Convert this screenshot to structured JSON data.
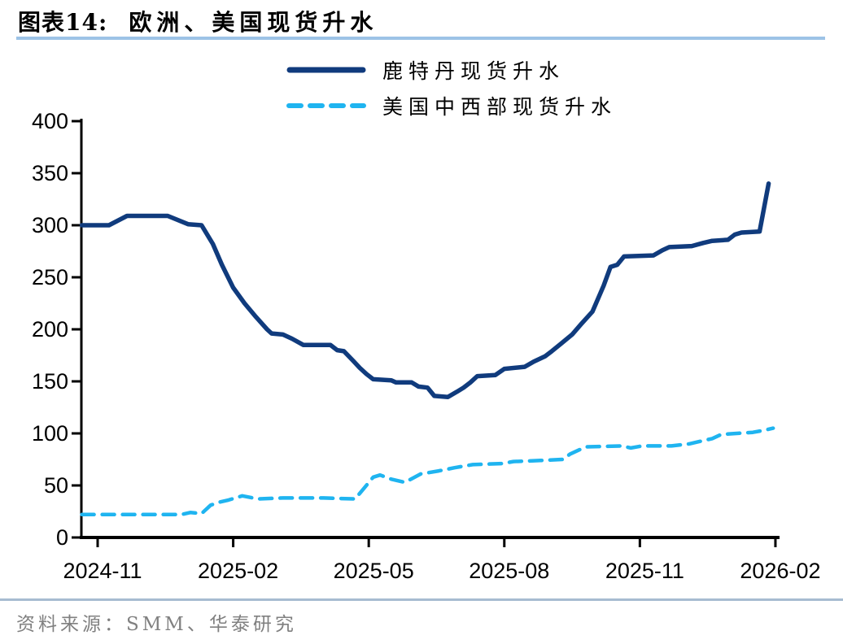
{
  "header": {
    "title_prefix": "图表14:",
    "title_text": "欧洲、美国现货升水"
  },
  "legend": {
    "items": [
      {
        "label": "鹿特丹现货升水",
        "color": "#103B7D",
        "style": "solid"
      },
      {
        "label": "美国中西部现货升水",
        "color": "#1FB4F0",
        "style": "dashed"
      }
    ]
  },
  "footer": {
    "source": "资料来源：SMM、华泰研究"
  },
  "colors": {
    "title_rule": "#9DC3E6",
    "footer_rule": "#A7BCD1",
    "axis": "#000000",
    "navy_series": "#103B7D",
    "cyan_series": "#1FB4F0",
    "footer_text": "#808080"
  },
  "chart_data": {
    "type": "line",
    "title": "欧洲、美国现货升水",
    "xlabel": "",
    "ylabel": "",
    "grid": false,
    "legend_position": "top-center",
    "x_unit": "months after 2024-11",
    "x_axis": {
      "range": [
        -0.5,
        15.3
      ],
      "ticks": [
        {
          "m": 0,
          "label": "2024-11"
        },
        {
          "m": 3,
          "label": "2025-02"
        },
        {
          "m": 6,
          "label": "2025-05"
        },
        {
          "m": 9,
          "label": "2025-08"
        },
        {
          "m": 12,
          "label": "2025-11"
        },
        {
          "m": 15,
          "label": "2026-02"
        }
      ]
    },
    "y_axis": {
      "range": [
        0,
        400
      ],
      "ticks": [
        0,
        50,
        100,
        150,
        200,
        250,
        300,
        350,
        400
      ]
    },
    "series": [
      {
        "name": "鹿特丹现货升水",
        "color": "#103B7D",
        "dash": false,
        "points": [
          [
            -0.35,
            300
          ],
          [
            0.25,
            300
          ],
          [
            0.65,
            309
          ],
          [
            1.55,
            309
          ],
          [
            2.0,
            301
          ],
          [
            2.3,
            300
          ],
          [
            2.55,
            282
          ],
          [
            2.75,
            262
          ],
          [
            3.0,
            240
          ],
          [
            3.25,
            225
          ],
          [
            3.5,
            212
          ],
          [
            3.75,
            200
          ],
          [
            3.85,
            196
          ],
          [
            4.1,
            195
          ],
          [
            4.3,
            191
          ],
          [
            4.55,
            185
          ],
          [
            5.15,
            185
          ],
          [
            5.3,
            180
          ],
          [
            5.45,
            179
          ],
          [
            5.65,
            170
          ],
          [
            5.8,
            163
          ],
          [
            5.95,
            157
          ],
          [
            6.1,
            152
          ],
          [
            6.5,
            151
          ],
          [
            6.6,
            149
          ],
          [
            6.95,
            149
          ],
          [
            7.1,
            145
          ],
          [
            7.3,
            144
          ],
          [
            7.45,
            136
          ],
          [
            7.75,
            135
          ],
          [
            7.95,
            140
          ],
          [
            8.1,
            144
          ],
          [
            8.25,
            149
          ],
          [
            8.4,
            155
          ],
          [
            8.8,
            156
          ],
          [
            9.0,
            162
          ],
          [
            9.45,
            164
          ],
          [
            9.65,
            169
          ],
          [
            9.9,
            174
          ],
          [
            10.05,
            179
          ],
          [
            10.25,
            186
          ],
          [
            10.5,
            195
          ],
          [
            10.7,
            205
          ],
          [
            10.95,
            217
          ],
          [
            11.2,
            242
          ],
          [
            11.35,
            260
          ],
          [
            11.5,
            262
          ],
          [
            11.65,
            270
          ],
          [
            12.3,
            271
          ],
          [
            12.5,
            276
          ],
          [
            12.65,
            279
          ],
          [
            13.15,
            280
          ],
          [
            13.4,
            283
          ],
          [
            13.6,
            285
          ],
          [
            13.95,
            286
          ],
          [
            14.1,
            291
          ],
          [
            14.25,
            293
          ],
          [
            14.65,
            294
          ],
          [
            14.85,
            340
          ]
        ]
      },
      {
        "name": "美国中西部现货升水",
        "color": "#1FB4F0",
        "dash": true,
        "points": [
          [
            -0.35,
            22
          ],
          [
            1.85,
            22
          ],
          [
            2.05,
            24
          ],
          [
            2.3,
            23
          ],
          [
            2.5,
            31
          ],
          [
            2.7,
            34
          ],
          [
            2.9,
            36
          ],
          [
            3.2,
            40
          ],
          [
            3.55,
            37
          ],
          [
            4.1,
            38
          ],
          [
            5.0,
            38
          ],
          [
            5.7,
            37
          ],
          [
            5.85,
            45
          ],
          [
            6.1,
            58
          ],
          [
            6.25,
            60
          ],
          [
            6.5,
            56
          ],
          [
            6.8,
            53
          ],
          [
            7.15,
            61
          ],
          [
            7.55,
            64
          ],
          [
            7.9,
            67
          ],
          [
            8.3,
            70
          ],
          [
            8.95,
            71
          ],
          [
            9.2,
            73
          ],
          [
            9.8,
            74
          ],
          [
            10.3,
            75
          ],
          [
            10.45,
            80
          ],
          [
            10.8,
            87
          ],
          [
            11.6,
            88
          ],
          [
            11.8,
            86
          ],
          [
            12.05,
            88
          ],
          [
            12.7,
            88
          ],
          [
            13.1,
            90
          ],
          [
            13.6,
            95
          ],
          [
            13.8,
            99
          ],
          [
            14.5,
            101
          ],
          [
            14.75,
            103
          ],
          [
            14.95,
            105
          ]
        ]
      }
    ]
  }
}
